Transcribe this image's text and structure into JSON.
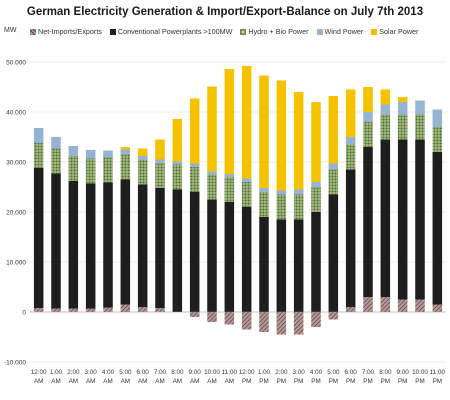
{
  "chart_data": {
    "type": "bar",
    "stacked": true,
    "title": "German Electricity Generation & Import/Export-Balance on July 7th 2013",
    "ylabel": "MW",
    "ylim": [
      -10000,
      52000
    ],
    "yticks": [
      -10000,
      0,
      10000,
      20000,
      30000,
      40000,
      50000
    ],
    "ytick_labels": [
      "-10.000",
      "0",
      "10.000",
      "20.000",
      "30.000",
      "40.000",
      "50.000"
    ],
    "grid": true,
    "legend_position": "top",
    "categories": [
      [
        "12:00",
        "AM"
      ],
      [
        "1:00",
        "AM"
      ],
      [
        "2:00",
        "AM"
      ],
      [
        "3:00",
        "AM"
      ],
      [
        "4:00",
        "AM"
      ],
      [
        "5:00",
        "AM"
      ],
      [
        "6:00",
        "AM"
      ],
      [
        "7:00",
        "AM"
      ],
      [
        "8:00",
        "AM"
      ],
      [
        "9:00",
        "AM"
      ],
      [
        "10:00",
        "AM"
      ],
      [
        "11:00",
        "AM"
      ],
      [
        "12:00",
        "PM"
      ],
      [
        "1:00",
        "PM"
      ],
      [
        "2:00",
        "PM"
      ],
      [
        "3:00",
        "PM"
      ],
      [
        "4:00",
        "PM"
      ],
      [
        "5:00",
        "PM"
      ],
      [
        "6:00",
        "PM"
      ],
      [
        "7:00",
        "PM"
      ],
      [
        "8:00",
        "PM"
      ],
      [
        "9:00",
        "PM"
      ],
      [
        "10:00",
        "PM"
      ],
      [
        "11:00",
        "PM"
      ]
    ],
    "series": [
      {
        "name": "Net-Imports/Exports",
        "color": "#7a6a6a",
        "pattern": "hatch",
        "values": [
          800,
          700,
          700,
          700,
          900,
          1500,
          1000,
          800,
          0,
          -1000,
          -2000,
          -2500,
          -3500,
          -4000,
          -4500,
          -4500,
          -3000,
          -1500,
          1000,
          3000,
          3000,
          2500,
          2500,
          1500
        ]
      },
      {
        "name": "Conventional Powerplants >100MW",
        "color": "#1e1e1e",
        "pattern": "solid",
        "values": [
          28000,
          27000,
          25500,
          25000,
          25000,
          25000,
          24500,
          24000,
          24500,
          24000,
          22500,
          22000,
          21000,
          19000,
          18500,
          18500,
          20000,
          23500,
          27500,
          30000,
          31500,
          32000,
          32000,
          30500
        ]
      },
      {
        "name": "Hydro + Bio Power",
        "color": "#6b8a4a",
        "pattern": "dots",
        "values": [
          5000,
          5000,
          5000,
          5000,
          5000,
          5000,
          5000,
          5000,
          5000,
          5000,
          5000,
          5000,
          5000,
          5000,
          5000,
          5000,
          5000,
          5000,
          5000,
          5000,
          5000,
          5000,
          5000,
          5000
        ]
      },
      {
        "name": "Wind Power",
        "color": "#97b3d3",
        "pattern": "solid",
        "values": [
          3000,
          2300,
          2000,
          1700,
          1400,
          1000,
          700,
          700,
          600,
          700,
          600,
          600,
          700,
          800,
          800,
          1000,
          1000,
          1200,
          1500,
          2000,
          2000,
          2500,
          2800,
          3500
        ]
      },
      {
        "name": "Solar Power",
        "color": "#f5c200",
        "pattern": "solid",
        "values": [
          0,
          0,
          0,
          0,
          0,
          500,
          1500,
          4000,
          8500,
          13000,
          17000,
          21000,
          22500,
          22500,
          22000,
          19500,
          16000,
          13500,
          9500,
          5000,
          3000,
          1000,
          0,
          0
        ]
      }
    ]
  }
}
